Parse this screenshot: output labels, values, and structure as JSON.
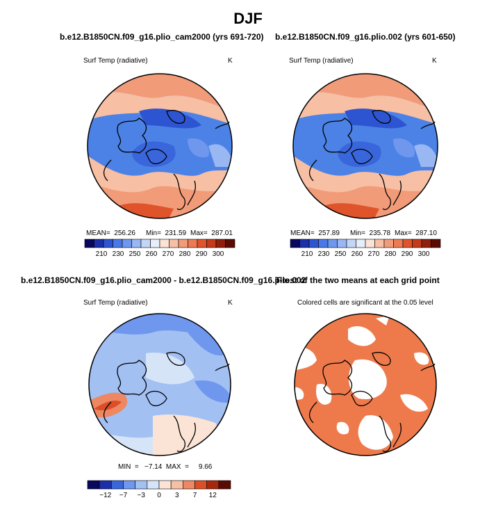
{
  "main_title": "DJF",
  "panels": [
    {
      "title": "b.e12.B1850CN.f09_g16.plio_cam2000 (yrs 691-720)",
      "field": "Surf Temp (radiative)",
      "units": "K",
      "stats": {
        "mean": "MEAN=  256.26",
        "min": "Min=  231.59",
        "max": "Max=  287.01"
      }
    },
    {
      "title": "b.e12.B1850CN.f09_g16.plio.002 (yrs 601-650)",
      "field": "Surf Temp (radiative)",
      "units": "K",
      "stats": {
        "mean": "MEAN=  257.89",
        "min": "Min=  235.78",
        "max": "Max=  287.10"
      }
    },
    {
      "title": "b.e12.B1850CN.f09_g16.plio_cam2000 - b.e12.B1850CN.f09_g16.plio.002",
      "field": "Surf Temp (radiative)",
      "units": "K",
      "stats": {
        "minmax": "MIN  =   −7.14  MAX  =     9.66"
      }
    },
    {
      "title": "T-test of the two means at each grid point",
      "subtitle": "Colored cells are significant at the 0.05 level"
    }
  ],
  "colorbar_abs": {
    "labels": [
      "210",
      "230",
      "250",
      "260",
      "270",
      "280",
      "290",
      "300"
    ],
    "colors": [
      "#08085e",
      "#1a2fa8",
      "#2d54d1",
      "#4a78e6",
      "#6f97ee",
      "#99b7f2",
      "#c3d6f6",
      "#e6eef9",
      "#fbe3d6",
      "#f7bfa3",
      "#f29b79",
      "#ec7a52",
      "#e0542c",
      "#c53a1a",
      "#8f1f0c",
      "#5a0c04"
    ]
  },
  "colorbar_diff": {
    "labels": [
      "−12",
      "−7",
      "−3",
      "0",
      "3",
      "7",
      "12"
    ],
    "colors": [
      "#08085e",
      "#1a2fa8",
      "#3a66dc",
      "#6f97ee",
      "#a3c0f3",
      "#d6e4f7",
      "#fbe3d6",
      "#f7bfa3",
      "#ee8862",
      "#db4e27",
      "#a8280e",
      "#5a0c04"
    ]
  }
}
